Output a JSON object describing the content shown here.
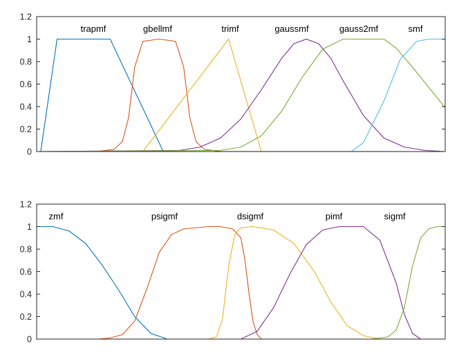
{
  "chart_data": [
    {
      "type": "line",
      "title": "",
      "xlabel": "",
      "ylabel": "",
      "xlim": [
        0,
        10
      ],
      "ylim": [
        0,
        1.2
      ],
      "yticks": [
        "0",
        "0.2",
        "0.4",
        "0.6",
        "0.8",
        "1",
        "1.2"
      ],
      "xticks": [],
      "grid": false,
      "legend": "none",
      "series": [
        {
          "name": "trapmf",
          "color": "#0072BD",
          "x": [
            0,
            0.1,
            0.5,
            1.8,
            3.1,
            10
          ],
          "y": [
            0,
            0,
            1,
            1,
            0,
            0
          ]
        },
        {
          "name": "gbellmf",
          "color": "#D95319",
          "x": [
            0,
            1.5,
            1.9,
            2.1,
            2.25,
            2.4,
            2.6,
            3.0,
            3.4,
            3.6,
            3.75,
            3.9,
            4.1,
            4.5,
            10
          ],
          "y": [
            0,
            0.001,
            0.02,
            0.09,
            0.3,
            0.75,
            0.98,
            1,
            0.98,
            0.75,
            0.3,
            0.09,
            0.02,
            0.001,
            0
          ]
        },
        {
          "name": "trimf",
          "color": "#EDB120",
          "x": [
            0,
            2.6,
            4.7,
            5.5,
            10
          ],
          "y": [
            0,
            0,
            1,
            0,
            0
          ]
        },
        {
          "name": "gaussmf",
          "color": "#7E2F8E",
          "x": [
            0,
            3.5,
            4.0,
            4.5,
            5.0,
            5.5,
            6.0,
            6.3,
            6.6,
            6.9,
            7.2,
            7.5,
            8.0,
            8.5,
            9.0,
            9.5,
            10
          ],
          "y": [
            0,
            0.01,
            0.04,
            0.12,
            0.29,
            0.55,
            0.83,
            0.96,
            1,
            0.96,
            0.83,
            0.63,
            0.32,
            0.12,
            0.04,
            0.01,
            0
          ]
        },
        {
          "name": "gauss2mf",
          "color": "#77AC30",
          "x": [
            0,
            4.5,
            5.0,
            5.5,
            6.0,
            6.5,
            7.0,
            7.5,
            7.9,
            8.5,
            8.8,
            9.2,
            9.6,
            10
          ],
          "y": [
            0,
            0.01,
            0.04,
            0.14,
            0.36,
            0.66,
            0.91,
            1,
            1,
            1,
            0.92,
            0.75,
            0.57,
            0.39
          ]
        },
        {
          "name": "smf",
          "color": "#4DBEEE",
          "x": [
            0,
            7.7,
            8.0,
            8.5,
            8.9,
            9.3,
            9.6,
            10
          ],
          "y": [
            0,
            0,
            0.08,
            0.45,
            0.82,
            0.98,
            1,
            1
          ]
        }
      ],
      "annotations": [
        "trapmf",
        "gbellmf",
        "trimf",
        "gaussmf",
        "gauss2mf",
        "smf"
      ]
    },
    {
      "type": "line",
      "title": "",
      "xlabel": "",
      "ylabel": "",
      "xlim": [
        0,
        10
      ],
      "ylim": [
        0,
        1.2
      ],
      "yticks": [
        "0",
        "0.2",
        "0.4",
        "0.6",
        "0.8",
        "1",
        "1.2"
      ],
      "xticks": [],
      "grid": false,
      "legend": "none",
      "series": [
        {
          "name": "zmf",
          "color": "#0072BD",
          "x": [
            0,
            0.4,
            0.8,
            1.2,
            1.6,
            2.0,
            2.4,
            2.8,
            3.2,
            10
          ],
          "y": [
            1,
            1,
            0.96,
            0.85,
            0.66,
            0.44,
            0.2,
            0.05,
            0,
            0
          ]
        },
        {
          "name": "psigmf",
          "color": "#D95319",
          "x": [
            0,
            1.5,
            1.8,
            2.1,
            2.4,
            2.7,
            3.0,
            3.3,
            3.6,
            3.9,
            4.2,
            4.5,
            4.8,
            5.0,
            5.1,
            5.2,
            5.3,
            5.4,
            5.5,
            10
          ],
          "y": [
            0,
            0,
            0.01,
            0.04,
            0.16,
            0.45,
            0.77,
            0.93,
            0.98,
            0.99,
            1,
            1,
            0.98,
            0.9,
            0.7,
            0.4,
            0.15,
            0.04,
            0,
            0
          ]
        },
        {
          "name": "dsigmf",
          "color": "#EDB120",
          "x": [
            0,
            4.2,
            4.4,
            4.55,
            4.7,
            4.85,
            5.0,
            5.3,
            5.8,
            6.3,
            6.8,
            7.2,
            7.6,
            8.0,
            8.4,
            10
          ],
          "y": [
            0,
            0,
            0.02,
            0.18,
            0.65,
            0.93,
            0.99,
            1,
            0.97,
            0.85,
            0.6,
            0.33,
            0.12,
            0.03,
            0,
            0
          ]
        },
        {
          "name": "pimf",
          "color": "#7E2F8E",
          "x": [
            0,
            5.0,
            5.4,
            5.8,
            6.2,
            6.6,
            7.0,
            7.4,
            8.0,
            8.4,
            8.8,
            9.0,
            9.2,
            9.4,
            10
          ],
          "y": [
            0,
            0,
            0.07,
            0.28,
            0.58,
            0.84,
            0.97,
            1,
            1,
            0.88,
            0.5,
            0.22,
            0.05,
            0,
            0
          ]
        },
        {
          "name": "sigmf",
          "color": "#77AC30",
          "x": [
            0,
            8.2,
            8.6,
            8.8,
            9.0,
            9.2,
            9.4,
            9.6,
            9.8,
            10
          ],
          "y": [
            0,
            0,
            0.02,
            0.08,
            0.28,
            0.65,
            0.9,
            0.98,
            1,
            1
          ]
        }
      ],
      "annotations": [
        "zmf",
        "psigmf",
        "dsigmf",
        "pimf",
        "sigmf"
      ]
    }
  ]
}
